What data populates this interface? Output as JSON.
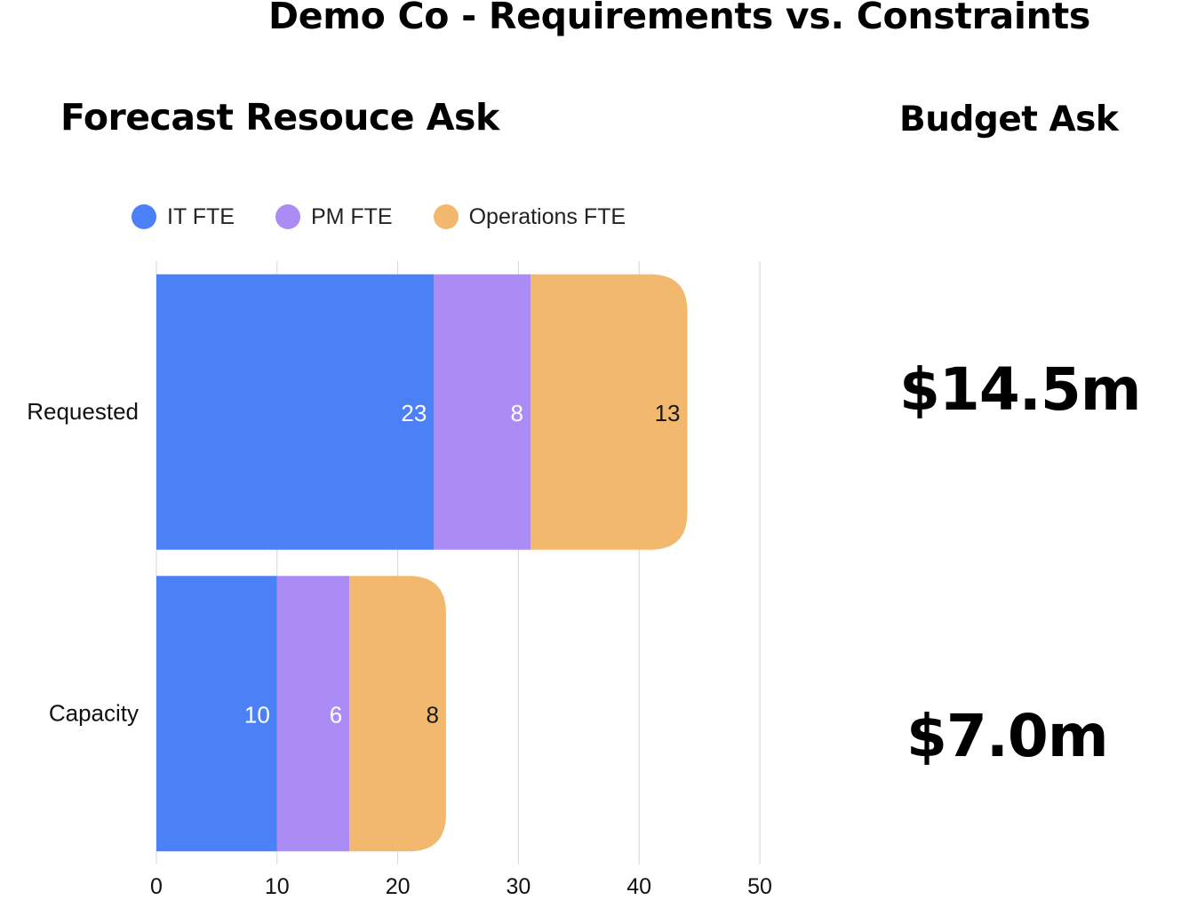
{
  "title": "Demo Co - Requirements vs. Constraints",
  "left_heading": "Forecast Resouce Ask",
  "right_heading": "Budget Ask",
  "budgets": [
    "$14.5m",
    "$7.0m"
  ],
  "chart_data": {
    "type": "bar",
    "orientation": "horizontal",
    "stacked": true,
    "categories": [
      "Requested",
      "Capacity"
    ],
    "series": [
      {
        "name": "IT FTE",
        "values": [
          23,
          10
        ],
        "color": "#4c80f7",
        "label_color": "#ffffff"
      },
      {
        "name": "PM FTE",
        "values": [
          8,
          6
        ],
        "color": "#ab8cf5",
        "label_color": "#ffffff"
      },
      {
        "name": "Operations FTE",
        "values": [
          13,
          8
        ],
        "color": "#f2b86d",
        "label_color": "#1a1a1a"
      }
    ],
    "xlim": [
      0,
      50
    ],
    "xticks": [
      0,
      10,
      20,
      30,
      40,
      50
    ],
    "grid": true,
    "legend_position": "top-left",
    "xlabel": "",
    "ylabel": ""
  }
}
